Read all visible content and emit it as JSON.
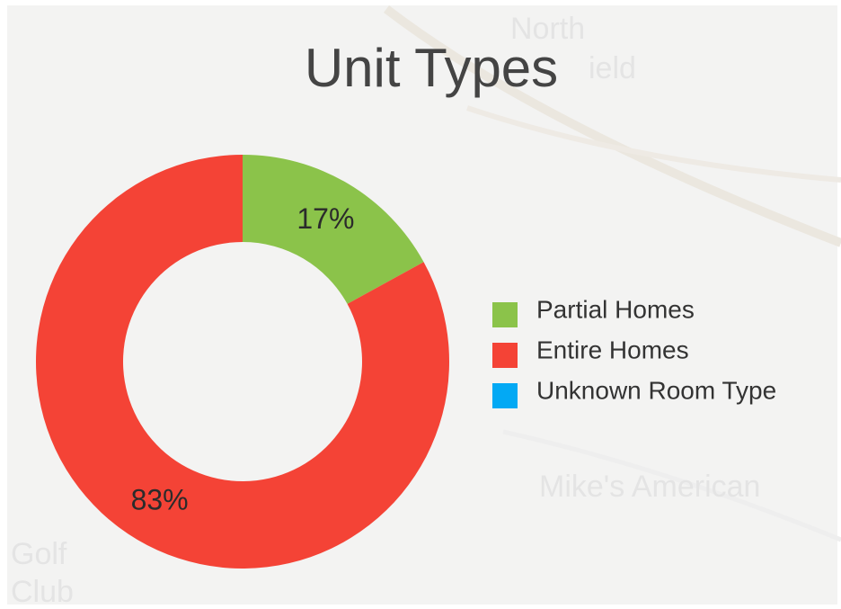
{
  "chart_data": {
    "type": "pie",
    "donut": true,
    "title": "Unit Types",
    "categories": [
      "Partial Homes",
      "Entire Homes",
      "Unknown Room Type"
    ],
    "values": [
      17,
      83,
      0
    ],
    "value_labels": [
      "17%",
      "83%",
      null
    ],
    "colors": [
      "#8bc34a",
      "#f44336",
      "#03a9f4"
    ],
    "legend": "right"
  },
  "map_labels": [
    "North",
    "ield",
    "Golf",
    "Club",
    "Mike's American"
  ]
}
